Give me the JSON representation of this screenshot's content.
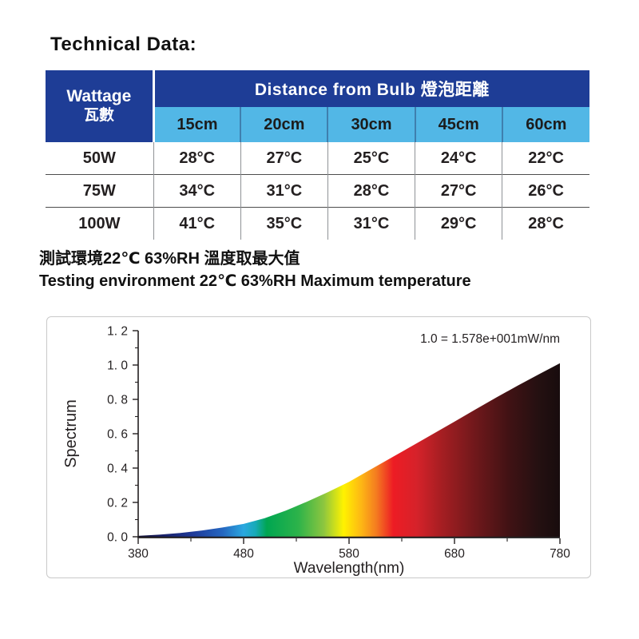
{
  "page": {
    "title": "Technical Data:"
  },
  "colors": {
    "header_bg": "#1e3d96",
    "subheader_bg": "#52b7e6",
    "axis": "#231f20"
  },
  "table": {
    "corner": {
      "line1": "Wattage",
      "line2": "瓦數"
    },
    "group_header": "Distance from Bulb 燈泡距離",
    "columns": [
      "15cm",
      "20cm",
      "30cm",
      "45cm",
      "60cm"
    ],
    "rows": [
      {
        "label": "50W",
        "values": [
          "28°C",
          "27°C",
          "25°C",
          "24°C",
          "22°C"
        ]
      },
      {
        "label": "75W",
        "values": [
          "34°C",
          "31°C",
          "28°C",
          "27°C",
          "26°C"
        ]
      },
      {
        "label": "100W",
        "values": [
          "41°C",
          "35°C",
          "31°C",
          "29°C",
          "28°C"
        ]
      }
    ]
  },
  "notes": {
    "line1": "測試環境22℃ 63%RH 溫度取最大值",
    "line2": "Testing environment 22℃ 63%RH Maximum temperature"
  },
  "chart_data": {
    "type": "area",
    "title": "",
    "annotation": "1.0  =  1.578e+001mW/nm",
    "xlabel": "Wavelength(nm)",
    "ylabel": "Spectrum",
    "xlim": [
      380,
      780
    ],
    "ylim": [
      0,
      1.2
    ],
    "x_ticks": [
      380,
      480,
      580,
      680,
      780
    ],
    "x_minor_ticks": [
      430,
      530,
      630,
      730
    ],
    "y_ticks": [
      0,
      0.2,
      0.4,
      0.6,
      0.8,
      1.0,
      1.2
    ],
    "y_tick_labels": [
      "0. 0",
      "0. 2",
      "0. 4",
      "0. 6",
      "0. 8",
      "1. 0",
      "1. 2"
    ],
    "y_minor_ticks": [
      0.1,
      0.3,
      0.5,
      0.7,
      0.9,
      1.1
    ],
    "grid": false,
    "legend": "none",
    "x": [
      380,
      400,
      420,
      440,
      460,
      480,
      500,
      520,
      540,
      560,
      580,
      600,
      620,
      640,
      660,
      680,
      700,
      720,
      740,
      760,
      780
    ],
    "y": [
      0.005,
      0.012,
      0.022,
      0.036,
      0.054,
      0.075,
      0.108,
      0.152,
      0.204,
      0.26,
      0.32,
      0.39,
      0.46,
      0.53,
      0.6,
      0.67,
      0.742,
      0.812,
      0.88,
      0.946,
      1.01
    ],
    "spectrum_gradient": [
      {
        "offset": 0.0,
        "color": "#0d0d33"
      },
      {
        "offset": 0.055,
        "color": "#171e66"
      },
      {
        "offset": 0.13,
        "color": "#1f3a99"
      },
      {
        "offset": 0.2,
        "color": "#2566c0"
      },
      {
        "offset": 0.25,
        "color": "#2ba8e0"
      },
      {
        "offset": 0.278,
        "color": "#17aab8"
      },
      {
        "offset": 0.305,
        "color": "#00a651"
      },
      {
        "offset": 0.38,
        "color": "#2db34a"
      },
      {
        "offset": 0.44,
        "color": "#8dc63f"
      },
      {
        "offset": 0.487,
        "color": "#fff200"
      },
      {
        "offset": 0.53,
        "color": "#fdb515"
      },
      {
        "offset": 0.565,
        "color": "#f47b20"
      },
      {
        "offset": 0.605,
        "color": "#ed1c24"
      },
      {
        "offset": 0.66,
        "color": "#d6222a"
      },
      {
        "offset": 0.72,
        "color": "#a51e22"
      },
      {
        "offset": 0.8,
        "color": "#6f181b"
      },
      {
        "offset": 0.88,
        "color": "#401214"
      },
      {
        "offset": 0.95,
        "color": "#241011"
      },
      {
        "offset": 1.0,
        "color": "#180c0d"
      }
    ]
  }
}
